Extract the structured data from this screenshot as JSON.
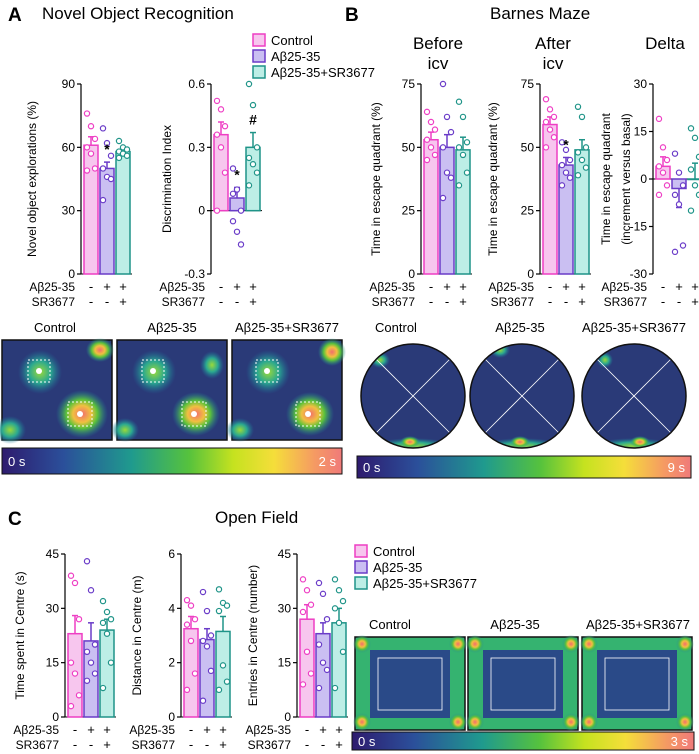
{
  "colors": {
    "control": "#ee3fc4",
    "abeta": "#6a3cc8",
    "combo": "#1f9488",
    "control_fill": "#f7c6ee",
    "abeta_fill": "#cabff2",
    "combo_fill": "#bdeee6"
  },
  "legend": {
    "control": "Control",
    "abeta": "Aβ25-35",
    "combo": "Aβ25-35+SR3677"
  },
  "treatment": {
    "row1_label": "Aβ25-35",
    "row2_label": "SR3677",
    "row1": [
      "-",
      "+",
      "+"
    ],
    "row2": [
      "-",
      "-",
      "+"
    ]
  },
  "panels": {
    "A": {
      "letter": "A",
      "title": "Novel Object Recognition",
      "heat_labels": [
        "Control",
        "Aβ25-35",
        "Aβ25-35+SR3677"
      ],
      "scale_min": "0 s",
      "scale_max": "2 s"
    },
    "B": {
      "letter": "B",
      "title": "Barnes Maze",
      "col1": "Before",
      "col1b": "icv",
      "col2": "After",
      "col2b": "icv",
      "col3": "Delta",
      "heat_labels": [
        "Control",
        "Aβ25-35",
        "Aβ25-35+SR3677"
      ],
      "scale_min": "0 s",
      "scale_max": "9 s"
    },
    "C": {
      "letter": "C",
      "title": "Open Field",
      "heat_labels": [
        "Control",
        "Aβ25-35",
        "Aβ25-35+SR3677"
      ],
      "scale_min": "0 s",
      "scale_max": "3 s"
    }
  },
  "chart_data": [
    {
      "id": "a1",
      "type": "bar",
      "ylabel": "Novel object explorations (%)",
      "ylim": [
        0,
        90
      ],
      "yticks": [
        0,
        30,
        60,
        90
      ],
      "categories": [
        "Control",
        "Aβ25-35",
        "Aβ25-35+SR3677"
      ],
      "values": [
        61,
        50,
        58
      ],
      "errors": [
        4,
        3,
        2
      ],
      "points": [
        [
          76,
          70,
          64,
          60,
          57,
          50,
          49
        ],
        [
          69,
          62,
          56,
          50,
          46,
          45,
          35
        ],
        [
          63,
          60,
          59,
          58,
          57,
          56,
          55
        ]
      ],
      "annotations": [
        "",
        "*",
        ""
      ]
    },
    {
      "id": "a2",
      "type": "bar",
      "ylabel": "Discrimination Index",
      "ylim": [
        -0.3,
        0.6
      ],
      "yticks": [
        -0.3,
        0,
        0.3,
        0.6
      ],
      "categories": [
        "Control",
        "Aβ25-35",
        "Aβ25-35+SR3677"
      ],
      "values": [
        0.36,
        0.06,
        0.3
      ],
      "errors": [
        0.06,
        0.05,
        0.07
      ],
      "points": [
        [
          0.52,
          0.48,
          0.4,
          0.36,
          0.3,
          0.18,
          0.0
        ],
        [
          0.2,
          0.1,
          0.0,
          -0.05,
          -0.1,
          -0.16,
          0.08
        ],
        [
          0.6,
          0.5,
          0.3,
          0.25,
          0.22,
          0.18,
          0.12
        ]
      ],
      "annotations": [
        "",
        "*",
        "#"
      ]
    },
    {
      "id": "b1",
      "type": "bar",
      "ylabel": "Time in escape quadrant (%)",
      "ylim": [
        0,
        75
      ],
      "yticks": [
        0,
        25,
        50,
        75
      ],
      "categories": [
        "Control",
        "Aβ25-35",
        "Aβ25-35+SR3677"
      ],
      "values": [
        53,
        50,
        49
      ],
      "errors": [
        3,
        5,
        5
      ],
      "points": [
        [
          64,
          60,
          57,
          53,
          50,
          47,
          45
        ],
        [
          75,
          62,
          56,
          50,
          40,
          38,
          30
        ],
        [
          68,
          62,
          52,
          50,
          47,
          40,
          35
        ]
      ],
      "annotations": [
        "",
        "",
        ""
      ]
    },
    {
      "id": "b2",
      "type": "bar",
      "ylabel": "Time in escape quadrant (%)",
      "ylim": [
        0,
        75
      ],
      "yticks": [
        0,
        25,
        50,
        75
      ],
      "categories": [
        "Control",
        "Aβ25-35",
        "Aβ25-35+SR3677"
      ],
      "values": [
        59,
        43,
        49
      ],
      "errors": [
        3,
        3,
        4
      ],
      "points": [
        [
          69,
          65,
          62,
          60,
          57,
          54,
          50
        ],
        [
          52,
          49,
          45,
          43,
          40,
          38,
          35
        ],
        [
          66,
          62,
          50,
          48,
          45,
          42,
          39
        ]
      ],
      "annotations": [
        "",
        "*",
        ""
      ]
    },
    {
      "id": "b3",
      "type": "bar",
      "ylabel": "Time in escape quadrant",
      "ylabel2": "(increment versus basal)",
      "ylim": [
        -30,
        30
      ],
      "yticks": [
        -30,
        -15,
        0,
        15,
        30
      ],
      "categories": [
        "Control",
        "Aβ25-35",
        "Aβ25-35+SR3677"
      ],
      "values": [
        4,
        -3,
        0
      ],
      "errors": [
        3,
        6,
        5
      ],
      "points": [
        [
          19,
          10,
          6,
          4,
          2,
          -2,
          -5
        ],
        [
          8,
          2,
          -2,
          -5,
          -8,
          -21,
          -23
        ],
        [
          16,
          13,
          7,
          3,
          -2,
          -5,
          -10
        ]
      ],
      "annotations": [
        "",
        "",
        ""
      ]
    },
    {
      "id": "c1",
      "type": "bar",
      "ylabel": "Time spent in Centre (s)",
      "ylim": [
        0,
        45
      ],
      "yticks": [
        0,
        15,
        30,
        45
      ],
      "categories": [
        "Control",
        "Aβ25-35",
        "Aβ25-35+SR3677"
      ],
      "values": [
        23,
        21,
        24
      ],
      "errors": [
        5,
        5,
        3
      ],
      "points": [
        [
          39,
          37,
          27,
          15,
          12,
          6,
          3
        ],
        [
          43,
          35,
          20,
          18,
          15,
          12,
          10
        ],
        [
          32,
          29,
          27,
          26,
          23,
          15,
          8
        ]
      ],
      "annotations": [
        "",
        "",
        ""
      ]
    },
    {
      "id": "c2",
      "type": "bar",
      "ylabel": "Distance in Centre (m)",
      "ylim": [
        0,
        6
      ],
      "yticks": [
        0,
        2,
        4,
        6
      ],
      "categories": [
        "Control",
        "Aβ25-35",
        "Aβ25-35+SR3677"
      ],
      "values": [
        3.25,
        2.85,
        3.15
      ],
      "errors": [
        0.45,
        0.4,
        0.55
      ],
      "points": [
        [
          4.3,
          4.1,
          3.6,
          3.4,
          2.8,
          1.6,
          1.0
        ],
        [
          4.6,
          3.9,
          3.0,
          2.8,
          2.6,
          1.7,
          0.6
        ],
        [
          4.7,
          4.2,
          4.1,
          3.9,
          1.9,
          1.3,
          1.0
        ]
      ],
      "annotations": [
        "",
        "",
        ""
      ]
    },
    {
      "id": "c3",
      "type": "bar",
      "ylabel": "Entries in Centre (number)",
      "ylim": [
        0,
        45
      ],
      "yticks": [
        0,
        15,
        30,
        45
      ],
      "categories": [
        "Control",
        "Aβ25-35",
        "Aβ25-35+SR3677"
      ],
      "values": [
        27,
        23,
        26
      ],
      "errors": [
        4,
        3,
        4
      ],
      "points": [
        [
          38,
          35,
          31,
          29,
          18,
          12,
          9
        ],
        [
          37,
          34,
          27,
          20,
          15,
          13,
          8
        ],
        [
          38,
          35,
          32,
          30,
          26,
          18,
          8
        ]
      ],
      "annotations": [
        "",
        "",
        ""
      ]
    }
  ]
}
